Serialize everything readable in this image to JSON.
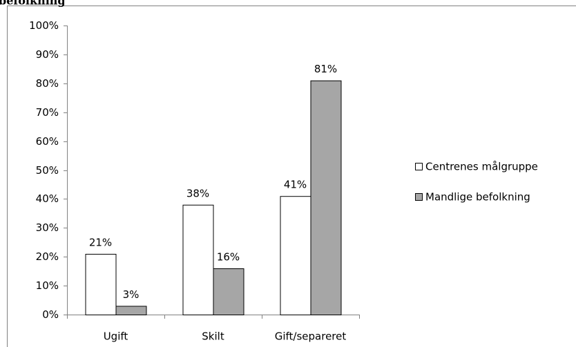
{
  "chart_data": {
    "type": "bar",
    "title": "befolkning",
    "categories": [
      "Ugift",
      "Skilt",
      "Gift/separeret"
    ],
    "series": [
      {
        "name": "Centrenes målgruppe",
        "color": "#ffffff",
        "values": [
          21,
          38,
          41
        ],
        "value_labels": [
          "21%",
          "38%",
          "41%"
        ]
      },
      {
        "name": "Mandlige befolkning",
        "color": "#a6a6a6",
        "values": [
          3,
          16,
          81
        ],
        "value_labels": [
          "3%",
          "16%",
          "81%"
        ]
      }
    ],
    "ylim": [
      0,
      100
    ],
    "yticks": [
      {
        "value": 0,
        "label": "0%"
      },
      {
        "value": 10,
        "label": "10%"
      },
      {
        "value": 20,
        "label": "20%"
      },
      {
        "value": 30,
        "label": "30%"
      },
      {
        "value": 40,
        "label": "40%"
      },
      {
        "value": 50,
        "label": "50%"
      },
      {
        "value": 60,
        "label": "60%"
      },
      {
        "value": 70,
        "label": "70%"
      },
      {
        "value": 80,
        "label": "80%"
      },
      {
        "value": 90,
        "label": "90%"
      },
      {
        "value": 100,
        "label": "100%"
      }
    ],
    "grid": false,
    "legend": "right"
  }
}
